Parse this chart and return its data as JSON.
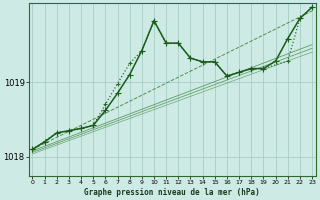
{
  "title": "Graphe pression niveau de la mer (hPa)",
  "bg_color": "#ceeae5",
  "grid_color": "#a8cdc8",
  "line_color_dark": "#1a5c1a",
  "line_color_light": "#2d7a2d",
  "ylim": [
    1017.75,
    1020.05
  ],
  "yticks": [
    1018,
    1019
  ],
  "xlim": [
    -0.3,
    23.3
  ],
  "xticks": [
    0,
    1,
    2,
    3,
    4,
    5,
    6,
    7,
    8,
    9,
    10,
    11,
    12,
    13,
    14,
    15,
    16,
    17,
    18,
    19,
    20,
    21,
    22,
    23
  ],
  "series": [
    {
      "name": "diagonal_straight",
      "x": [
        0,
        23
      ],
      "y": [
        1018.1,
        1019.95
      ],
      "linestyle": "--",
      "linewidth": 0.7,
      "color": "#2d7a2d",
      "alpha": 0.8,
      "marker": null,
      "markersize": 0
    },
    {
      "name": "lower_straight1",
      "x": [
        0,
        23
      ],
      "y": [
        1018.08,
        1019.5
      ],
      "linestyle": "-",
      "linewidth": 0.6,
      "color": "#2d7a2d",
      "alpha": 0.7,
      "marker": null,
      "markersize": 0
    },
    {
      "name": "lower_straight2",
      "x": [
        0,
        23
      ],
      "y": [
        1018.06,
        1019.45
      ],
      "linestyle": "-",
      "linewidth": 0.6,
      "color": "#2d7a2d",
      "alpha": 0.65,
      "marker": null,
      "markersize": 0
    },
    {
      "name": "lower_straight3",
      "x": [
        0,
        23
      ],
      "y": [
        1018.04,
        1019.4
      ],
      "linestyle": "-",
      "linewidth": 0.5,
      "color": "#2d7a2d",
      "alpha": 0.6,
      "marker": null,
      "markersize": 0
    },
    {
      "name": "main_volatile",
      "x": [
        0,
        1,
        2,
        3,
        4,
        5,
        6,
        7,
        8,
        9,
        10,
        11,
        12,
        13,
        14,
        15,
        16,
        17,
        18,
        19,
        20,
        21,
        22,
        23
      ],
      "y": [
        1018.1,
        1018.2,
        1018.32,
        1018.35,
        1018.38,
        1018.42,
        1018.62,
        1018.85,
        1019.1,
        1019.42,
        1019.82,
        1019.52,
        1019.52,
        1019.32,
        1019.27,
        1019.27,
        1019.08,
        1019.13,
        1019.18,
        1019.18,
        1019.28,
        1019.58,
        1019.85,
        1020.0
      ],
      "linestyle": "-",
      "linewidth": 1.1,
      "color": "#1a5c1a",
      "alpha": 1.0,
      "marker": "+",
      "markersize": 4
    },
    {
      "name": "dotted_volatile",
      "x": [
        0,
        2,
        3,
        4,
        5,
        6,
        7,
        8,
        9,
        10,
        11,
        12,
        13,
        14,
        15,
        16,
        17,
        18,
        19,
        21,
        22,
        23
      ],
      "y": [
        1018.1,
        1018.32,
        1018.35,
        1018.38,
        1018.42,
        1018.7,
        1018.98,
        1019.25,
        1019.42,
        1019.82,
        1019.52,
        1019.52,
        1019.32,
        1019.27,
        1019.27,
        1019.08,
        1019.13,
        1019.18,
        1019.18,
        1019.28,
        1019.85,
        1020.0
      ],
      "linestyle": ":",
      "linewidth": 0.9,
      "color": "#1a5c1a",
      "alpha": 0.9,
      "marker": "+",
      "markersize": 3.5
    }
  ]
}
